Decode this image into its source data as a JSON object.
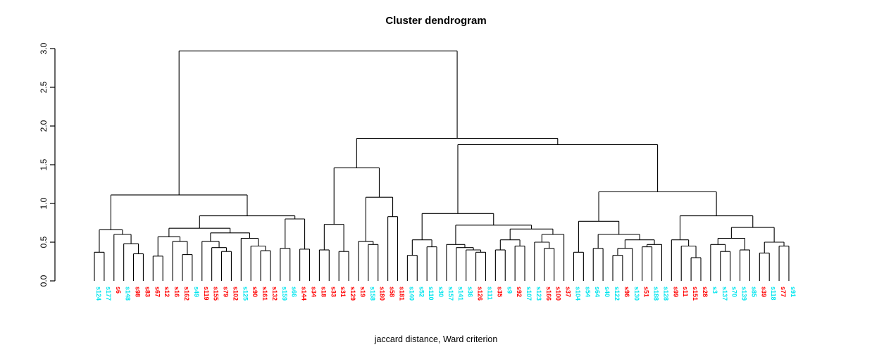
{
  "title": "Cluster dendrogram",
  "xlabel": "jaccard distance, Ward criterion",
  "chart_data": {
    "type": "dendrogram",
    "title": "Cluster dendrogram",
    "xlabel": "jaccard distance, Ward criterion",
    "ylabel": "",
    "ylim": [
      0.0,
      3.0
    ],
    "y_ticks": [
      "0.0",
      "0.5",
      "1.0",
      "1.5",
      "2.0",
      "2.5",
      "3.0"
    ],
    "grid": false,
    "colors": {
      "red": "#FF0000",
      "cyan": "#00E5EE",
      "line": "#000000"
    },
    "leaves": [
      {
        "label": "s124",
        "color": "cyan"
      },
      {
        "label": "s177",
        "color": "cyan"
      },
      {
        "label": "s6",
        "color": "red"
      },
      {
        "label": "s148",
        "color": "cyan"
      },
      {
        "label": "s98",
        "color": "red"
      },
      {
        "label": "s83",
        "color": "red"
      },
      {
        "label": "s67",
        "color": "red"
      },
      {
        "label": "s12",
        "color": "red"
      },
      {
        "label": "s16",
        "color": "red"
      },
      {
        "label": "s162",
        "color": "red"
      },
      {
        "label": "s49",
        "color": "cyan"
      },
      {
        "label": "s119",
        "color": "red"
      },
      {
        "label": "s155",
        "color": "red"
      },
      {
        "label": "s79",
        "color": "red"
      },
      {
        "label": "s102",
        "color": "red"
      },
      {
        "label": "s125",
        "color": "cyan"
      },
      {
        "label": "s90",
        "color": "red"
      },
      {
        "label": "s161",
        "color": "red"
      },
      {
        "label": "s132",
        "color": "red"
      },
      {
        "label": "s159",
        "color": "cyan"
      },
      {
        "label": "s66",
        "color": "cyan"
      },
      {
        "label": "s144",
        "color": "red"
      },
      {
        "label": "s34",
        "color": "red"
      },
      {
        "label": "s18",
        "color": "red"
      },
      {
        "label": "s33",
        "color": "red"
      },
      {
        "label": "s31",
        "color": "red"
      },
      {
        "label": "s129",
        "color": "red"
      },
      {
        "label": "s19",
        "color": "red"
      },
      {
        "label": "s158",
        "color": "cyan"
      },
      {
        "label": "s180",
        "color": "red"
      },
      {
        "label": "s58",
        "color": "red"
      },
      {
        "label": "s181",
        "color": "red"
      },
      {
        "label": "s140",
        "color": "cyan"
      },
      {
        "label": "s52",
        "color": "cyan"
      },
      {
        "label": "s110",
        "color": "cyan"
      },
      {
        "label": "s30",
        "color": "cyan"
      },
      {
        "label": "s157",
        "color": "cyan"
      },
      {
        "label": "s141",
        "color": "cyan"
      },
      {
        "label": "s36",
        "color": "cyan"
      },
      {
        "label": "s126",
        "color": "red"
      },
      {
        "label": "s111",
        "color": "cyan"
      },
      {
        "label": "s35",
        "color": "red"
      },
      {
        "label": "s9",
        "color": "cyan"
      },
      {
        "label": "s92",
        "color": "red"
      },
      {
        "label": "s107",
        "color": "cyan"
      },
      {
        "label": "s123",
        "color": "cyan"
      },
      {
        "label": "s166",
        "color": "red"
      },
      {
        "label": "s100",
        "color": "red"
      },
      {
        "label": "s37",
        "color": "red"
      },
      {
        "label": "s104",
        "color": "cyan"
      },
      {
        "label": "s54",
        "color": "cyan"
      },
      {
        "label": "s64",
        "color": "cyan"
      },
      {
        "label": "s40",
        "color": "cyan"
      },
      {
        "label": "s122",
        "color": "cyan"
      },
      {
        "label": "s96",
        "color": "red"
      },
      {
        "label": "s130",
        "color": "cyan"
      },
      {
        "label": "s51",
        "color": "red"
      },
      {
        "label": "s188",
        "color": "cyan"
      },
      {
        "label": "s128",
        "color": "cyan"
      },
      {
        "label": "s99",
        "color": "red"
      },
      {
        "label": "s11",
        "color": "red"
      },
      {
        "label": "s151",
        "color": "red"
      },
      {
        "label": "s28",
        "color": "red"
      },
      {
        "label": "s3",
        "color": "cyan"
      },
      {
        "label": "s137",
        "color": "cyan"
      },
      {
        "label": "s70",
        "color": "cyan"
      },
      {
        "label": "s139",
        "color": "cyan"
      },
      {
        "label": "s85",
        "color": "cyan"
      },
      {
        "label": "s39",
        "color": "red"
      },
      {
        "label": "s118",
        "color": "cyan"
      },
      {
        "label": "s77",
        "color": "red"
      },
      {
        "label": "s91",
        "color": "cyan"
      }
    ],
    "tree": {
      "h": 2.97,
      "c": [
        {
          "h": 1.11,
          "c": [
            {
              "h": 0.66,
              "c": [
                {
                  "h": 0.37,
                  "c": [
                    "s124",
                    "s177"
                  ]
                },
                {
                  "h": 0.6,
                  "c": [
                    "s6",
                    {
                      "h": 0.48,
                      "c": [
                        "s148",
                        {
                          "h": 0.35,
                          "c": [
                            "s98",
                            "s83"
                          ]
                        }
                      ]
                    }
                  ]
                }
              ]
            },
            {
              "h": 0.84,
              "c": [
                {
                  "h": 0.68,
                  "c": [
                    {
                      "h": 0.57,
                      "c": [
                        {
                          "h": 0.32,
                          "c": [
                            "s67",
                            "s12"
                          ]
                        },
                        {
                          "h": 0.51,
                          "c": [
                            "s16",
                            {
                              "h": 0.34,
                              "c": [
                                "s162",
                                "s49"
                              ]
                            }
                          ]
                        }
                      ]
                    },
                    {
                      "h": 0.62,
                      "c": [
                        {
                          "h": 0.51,
                          "c": [
                            "s119",
                            {
                              "h": 0.43,
                              "c": [
                                "s155",
                                {
                                  "h": 0.38,
                                  "c": [
                                    "s79",
                                    "s102"
                                  ]
                                }
                              ]
                            }
                          ]
                        },
                        {
                          "h": 0.55,
                          "c": [
                            "s125",
                            {
                              "h": 0.45,
                              "c": [
                                "s90",
                                {
                                  "h": 0.39,
                                  "c": [
                                    "s161",
                                    "s132"
                                  ]
                                }
                              ]
                            }
                          ]
                        }
                      ]
                    }
                  ]
                },
                {
                  "h": 0.8,
                  "c": [
                    {
                      "h": 0.42,
                      "c": [
                        "s159",
                        "s66"
                      ]
                    },
                    {
                      "h": 0.41,
                      "c": [
                        "s144",
                        "s34"
                      ]
                    }
                  ]
                }
              ]
            }
          ]
        },
        {
          "h": 1.84,
          "c": [
            {
              "h": 1.46,
              "c": [
                {
                  "h": 0.73,
                  "c": [
                    {
                      "h": 0.4,
                      "c": [
                        "s18",
                        "s33"
                      ]
                    },
                    {
                      "h": 0.38,
                      "c": [
                        "s31",
                        "s129"
                      ]
                    }
                  ]
                },
                {
                  "h": 1.08,
                  "c": [
                    {
                      "h": 0.51,
                      "c": [
                        "s19",
                        {
                          "h": 0.47,
                          "c": [
                            "s158",
                            "s180"
                          ]
                        }
                      ]
                    },
                    {
                      "h": 0.83,
                      "c": [
                        "s58",
                        "s181"
                      ]
                    }
                  ]
                }
              ]
            },
            {
              "h": 1.76,
              "c": [
                {
                  "h": 0.87,
                  "c": [
                    {
                      "h": 0.53,
                      "c": [
                        {
                          "h": 0.33,
                          "c": [
                            "s140",
                            "s52"
                          ]
                        },
                        {
                          "h": 0.44,
                          "c": [
                            "s110",
                            "s30"
                          ]
                        }
                      ]
                    },
                    {
                      "h": 0.72,
                      "c": [
                        {
                          "h": 0.47,
                          "c": [
                            "s157",
                            {
                              "h": 0.43,
                              "c": [
                                "s141",
                                {
                                  "h": 0.4,
                                  "c": [
                                    "s36",
                                    {
                                      "h": 0.37,
                                      "c": [
                                        "s126",
                                        "s111"
                                      ]
                                    }
                                  ]
                                }
                              ]
                            }
                          ]
                        },
                        {
                          "h": 0.67,
                          "c": [
                            {
                              "h": 0.53,
                              "c": [
                                {
                                  "h": 0.4,
                                  "c": [
                                    "s35",
                                    "s9"
                                  ]
                                },
                                {
                                  "h": 0.45,
                                  "c": [
                                    "s92",
                                    "s107"
                                  ]
                                }
                              ]
                            },
                            {
                              "h": 0.6,
                              "c": [
                                {
                                  "h": 0.5,
                                  "c": [
                                    "s123",
                                    {
                                      "h": 0.42,
                                      "c": [
                                        "s166",
                                        "s100"
                                      ]
                                    }
                                  ]
                                },
                                "s37"
                              ]
                            }
                          ]
                        }
                      ]
                    }
                  ]
                },
                {
                  "h": 1.15,
                  "c": [
                    {
                      "h": 0.77,
                      "c": [
                        {
                          "h": 0.37,
                          "c": [
                            "s104",
                            "s54"
                          ]
                        },
                        {
                          "h": 0.6,
                          "c": [
                            {
                              "h": 0.42,
                              "c": [
                                "s64",
                                "s40"
                              ]
                            },
                            {
                              "h": 0.53,
                              "c": [
                                {
                                  "h": 0.42,
                                  "c": [
                                    {
                                      "h": 0.33,
                                      "c": [
                                        "s122",
                                        "s96"
                                      ]
                                    },
                                    "s130"
                                  ]
                                },
                                {
                                  "h": 0.47,
                                  "c": [
                                    {
                                      "h": 0.44,
                                      "c": [
                                        "s51",
                                        "s188"
                                      ]
                                    },
                                    "s128"
                                  ]
                                }
                              ]
                            }
                          ]
                        }
                      ]
                    },
                    {
                      "h": 0.84,
                      "c": [
                        {
                          "h": 0.53,
                          "c": [
                            "s99",
                            {
                              "h": 0.45,
                              "c": [
                                "s11",
                                {
                                  "h": 0.3,
                                  "c": [
                                    "s151",
                                    "s28"
                                  ]
                                }
                              ]
                            }
                          ]
                        },
                        {
                          "h": 0.69,
                          "c": [
                            {
                              "h": 0.55,
                              "c": [
                                {
                                  "h": 0.47,
                                  "c": [
                                    "s3",
                                    {
                                      "h": 0.38,
                                      "c": [
                                        "s137",
                                        "s70"
                                      ]
                                    }
                                  ]
                                },
                                {
                                  "h": 0.4,
                                  "c": [
                                    "s139",
                                    "s85"
                                  ]
                                }
                              ]
                            },
                            {
                              "h": 0.5,
                              "c": [
                                {
                                  "h": 0.36,
                                  "c": [
                                    "s39",
                                    "s118"
                                  ]
                                },
                                {
                                  "h": 0.45,
                                  "c": [
                                    "s77",
                                    "s91"
                                  ]
                                }
                              ]
                            }
                          ]
                        }
                      ]
                    }
                  ]
                }
              ]
            }
          ]
        }
      ]
    }
  }
}
